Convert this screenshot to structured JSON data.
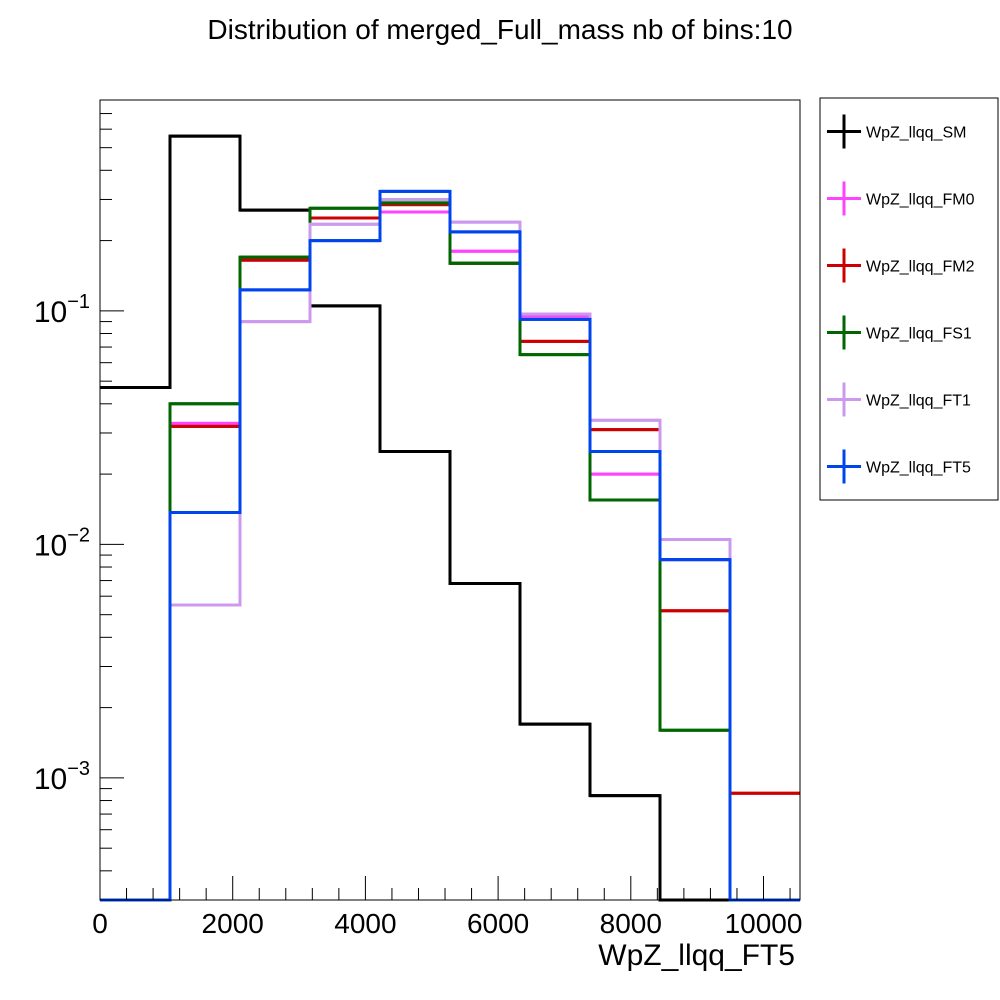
{
  "chart_data": {
    "type": "line",
    "title": "Distribution of merged_Full_mass nb of bins:10",
    "xlabel": "WpZ_llqq_FT5",
    "ylabel": "",
    "y_scale": "log",
    "xlim": [
      0,
      10550
    ],
    "ylim": [
      0.0003,
      0.8
    ],
    "x_tick_labels": [
      "0",
      "2000",
      "4000",
      "6000",
      "8000",
      "10000"
    ],
    "x_ticks": [
      0,
      2000,
      4000,
      6000,
      8000,
      10000
    ],
    "y_ticks": [
      {
        "value": 0.1,
        "base": "10",
        "exponent": "-1"
      },
      {
        "value": 0.01,
        "base": "10",
        "exponent": "-2"
      },
      {
        "value": 0.001,
        "base": "10",
        "exponent": "-3"
      }
    ],
    "bin_edges": [
      0,
      1055,
      2110,
      3165,
      4220,
      5275,
      6330,
      7385,
      8440,
      9495,
      10550
    ],
    "grid": false,
    "legend_position": "right",
    "series": [
      {
        "name": "WpZ_llqq_SM",
        "color": "#000000",
        "values": [
          0.047,
          0.56,
          0.27,
          0.105,
          0.025,
          0.0068,
          0.0017,
          0.00084,
          0,
          0
        ]
      },
      {
        "name": "WpZ_llqq_FM0",
        "color": "#ff44ff",
        "values": [
          0,
          0.033,
          0.165,
          0.25,
          0.265,
          0.18,
          0.095,
          0.02,
          0.0086,
          0
        ]
      },
      {
        "name": "WpZ_llqq_FM2",
        "color": "#cc0000",
        "values": [
          0,
          0.032,
          0.165,
          0.25,
          0.285,
          0.16,
          0.074,
          0.031,
          0.0052,
          0.00086
        ]
      },
      {
        "name": "WpZ_llqq_FS1",
        "color": "#006600",
        "values": [
          0,
          0.04,
          0.17,
          0.275,
          0.29,
          0.16,
          0.065,
          0.0155,
          0.0016,
          0
        ]
      },
      {
        "name": "WpZ_llqq_FT1",
        "color": "#cc99ee",
        "values": [
          0,
          0.0055,
          0.09,
          0.235,
          0.3,
          0.24,
          0.097,
          0.034,
          0.0105,
          0
        ]
      },
      {
        "name": "WpZ_llqq_FT5",
        "color": "#0044ee",
        "values": [
          0,
          0.0137,
          0.123,
          0.2,
          0.325,
          0.218,
          0.092,
          0.025,
          0.0086,
          0
        ]
      }
    ]
  }
}
